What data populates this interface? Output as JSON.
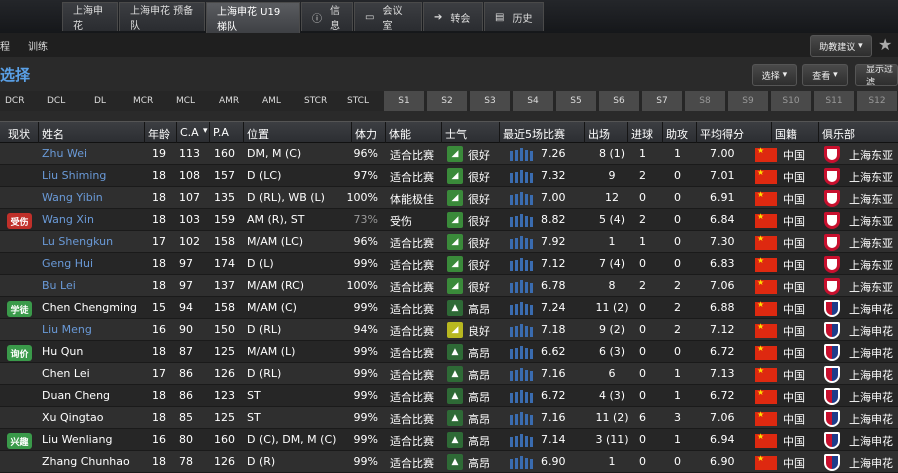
{
  "tabs": [
    {
      "label": "上海申花",
      "icon": "",
      "active": false
    },
    {
      "label": "上海申花 预备队",
      "icon": "",
      "active": false
    },
    {
      "label": "上海申花 U19梯队",
      "icon": "",
      "active": true
    },
    {
      "label": "信息",
      "icon": "info-icon",
      "active": false
    },
    {
      "label": "会议室",
      "icon": "meeting-room-icon",
      "active": false
    },
    {
      "label": "转会",
      "icon": "transfer-icon",
      "active": false
    },
    {
      "label": "历史",
      "icon": "history-icon",
      "active": false
    }
  ],
  "subnav": {
    "left": "程",
    "training": "训练"
  },
  "page_title": "选择",
  "buttons": {
    "assistant": "助教建议",
    "select": "选择",
    "view": "查看",
    "show_filter": "显示过滤"
  },
  "positions": [
    "DCR",
    "DCL",
    "DL",
    "MCR",
    "MCL",
    "AMR",
    "AML",
    "STCR",
    "STCL"
  ],
  "slots": [
    "S1",
    "S2",
    "S3",
    "S4",
    "S5",
    "S6",
    "S7",
    "S8",
    "S9",
    "S10",
    "S11",
    "S12"
  ],
  "columns": {
    "status": "现状",
    "name": "姓名",
    "age": "年龄",
    "ca": "C.A",
    "pa": "P.A",
    "position": "位置",
    "fitness": "体力",
    "condition": "体能",
    "morale": "士气",
    "form": "最近5场比赛",
    "apps": "出场",
    "goals": "进球",
    "assists": "助攻",
    "avg": "平均得分",
    "nation": "国籍",
    "club": "俱乐部"
  },
  "colors": {
    "link": "#6a9ad8",
    "injury": "#c0302a",
    "status_green": "#3a9a4a",
    "morale_green": "#3a8a3a",
    "morale_yellow": "#b8b820"
  },
  "rows": [
    {
      "status": "",
      "name": "Zhu Wei",
      "link": true,
      "age": "19",
      "ca": "113",
      "pa": "160",
      "position": "DM, M (C)",
      "fitness": "96%",
      "condition": "适合比赛",
      "morale": "很好",
      "morale_icon": "flag",
      "form": [
        0.7,
        0.8,
        0.9,
        0.8,
        0.7
      ],
      "rating": "7.26",
      "apps": "8 (1)",
      "goals": "1",
      "assists": "1",
      "avg": "7.00",
      "nation": "中国",
      "club": "上海东亚",
      "club_crest": "dy"
    },
    {
      "status": "",
      "name": "Liu Shiming",
      "link": true,
      "age": "18",
      "ca": "108",
      "pa": "157",
      "position": "D (LC)",
      "fitness": "97%",
      "condition": "适合比赛",
      "morale": "很好",
      "morale_icon": "flag",
      "form": [
        0.7,
        0.8,
        0.9,
        0.8,
        0.7
      ],
      "rating": "7.32",
      "apps": "9",
      "goals": "2",
      "assists": "0",
      "avg": "7.01",
      "nation": "中国",
      "club": "上海东亚",
      "club_crest": "dy"
    },
    {
      "status": "",
      "name": "Wang Yibin",
      "link": true,
      "age": "18",
      "ca": "107",
      "pa": "135",
      "position": "D (RL), WB (L)",
      "fitness": "100%",
      "condition": "体能极佳",
      "morale": "很好",
      "morale_icon": "flag",
      "form": [
        0.7,
        0.8,
        0.9,
        0.8,
        0.7
      ],
      "rating": "7.00",
      "apps": "12",
      "goals": "0",
      "assists": "0",
      "avg": "6.91",
      "nation": "中国",
      "club": "上海东亚",
      "club_crest": "dy"
    },
    {
      "status": "受伤",
      "status_type": "injury",
      "name": "Wang Xin",
      "link": true,
      "age": "18",
      "ca": "103",
      "pa": "159",
      "position": "AM (R), ST",
      "fitness": "73%",
      "fitness_dim": true,
      "condition": "受伤",
      "morale": "很好",
      "morale_icon": "flag",
      "form": [
        0.7,
        0.8,
        0.9,
        0.8,
        0.7
      ],
      "rating": "8.82",
      "apps": "5 (4)",
      "goals": "2",
      "assists": "0",
      "avg": "6.84",
      "nation": "中国",
      "club": "上海东亚",
      "club_crest": "dy"
    },
    {
      "status": "",
      "name": "Lu Shengkun",
      "link": true,
      "age": "17",
      "ca": "102",
      "pa": "158",
      "position": "M/AM (LC)",
      "fitness": "96%",
      "condition": "适合比赛",
      "morale": "很好",
      "morale_icon": "flag",
      "form": [
        0.7,
        0.8,
        0.9,
        0.8,
        0.7
      ],
      "rating": "7.92",
      "apps": "1",
      "goals": "1",
      "assists": "0",
      "avg": "7.30",
      "nation": "中国",
      "club": "上海东亚",
      "club_crest": "dy"
    },
    {
      "status": "",
      "name": "Geng Hui",
      "link": true,
      "age": "18",
      "ca": "97",
      "pa": "174",
      "position": "D (L)",
      "fitness": "99%",
      "condition": "适合比赛",
      "morale": "很好",
      "morale_icon": "flag",
      "form": [
        0.7,
        0.8,
        0.9,
        0.8,
        0.7
      ],
      "rating": "7.12",
      "apps": "7 (4)",
      "goals": "0",
      "assists": "0",
      "avg": "6.83",
      "nation": "中国",
      "club": "上海东亚",
      "club_crest": "dy"
    },
    {
      "status": "",
      "name": "Bu Lei",
      "link": true,
      "age": "18",
      "ca": "97",
      "pa": "137",
      "position": "M/AM (RC)",
      "fitness": "100%",
      "condition": "适合比赛",
      "morale": "很好",
      "morale_icon": "flag",
      "form": [
        0.7,
        0.8,
        0.9,
        0.8,
        0.7
      ],
      "rating": "6.78",
      "apps": "8",
      "goals": "2",
      "assists": "2",
      "avg": "7.06",
      "nation": "中国",
      "club": "上海东亚",
      "club_crest": "dy"
    },
    {
      "status": "学徒",
      "status_type": "green",
      "name": "Chen Chengming",
      "link": false,
      "age": "15",
      "ca": "94",
      "pa": "158",
      "position": "M/AM (C)",
      "fitness": "99%",
      "condition": "适合比赛",
      "morale": "高昂",
      "morale_icon": "arrow",
      "form": [
        0.7,
        0.8,
        0.9,
        0.8,
        0.7
      ],
      "rating": "7.24",
      "apps": "11 (2)",
      "goals": "0",
      "assists": "2",
      "avg": "6.88",
      "nation": "中国",
      "club": "上海申花",
      "club_crest": "sh"
    },
    {
      "status": "",
      "name": "Liu Meng",
      "link": true,
      "age": "16",
      "ca": "90",
      "pa": "150",
      "position": "D (RL)",
      "fitness": "94%",
      "condition": "适合比赛",
      "morale": "良好",
      "morale_icon": "flag-yellow",
      "form": [
        0.7,
        0.8,
        0.9,
        0.8,
        0.7
      ],
      "rating": "7.18",
      "apps": "9 (2)",
      "goals": "0",
      "assists": "2",
      "avg": "7.12",
      "nation": "中国",
      "club": "上海申花",
      "club_crest": "sh"
    },
    {
      "status": "询价",
      "status_type": "green",
      "name": "Hu Qun",
      "link": false,
      "age": "18",
      "ca": "87",
      "pa": "125",
      "position": "M/AM (L)",
      "fitness": "99%",
      "condition": "适合比赛",
      "morale": "高昂",
      "morale_icon": "arrow",
      "form": [
        0.7,
        0.8,
        0.9,
        0.8,
        0.7
      ],
      "rating": "6.62",
      "apps": "6 (3)",
      "goals": "0",
      "assists": "0",
      "avg": "6.72",
      "nation": "中国",
      "club": "上海申花",
      "club_crest": "sh"
    },
    {
      "status": "",
      "name": "Chen Lei",
      "link": false,
      "age": "17",
      "ca": "86",
      "pa": "126",
      "position": "D (RL)",
      "fitness": "99%",
      "condition": "适合比赛",
      "morale": "高昂",
      "morale_icon": "arrow",
      "form": [
        0.7,
        0.8,
        0.9,
        0.8,
        0.7
      ],
      "rating": "7.16",
      "apps": "6",
      "goals": "0",
      "assists": "1",
      "avg": "7.13",
      "nation": "中国",
      "club": "上海申花",
      "club_crest": "sh"
    },
    {
      "status": "",
      "name": "Duan Cheng",
      "link": false,
      "age": "18",
      "ca": "86",
      "pa": "123",
      "position": "ST",
      "fitness": "99%",
      "condition": "适合比赛",
      "morale": "高昂",
      "morale_icon": "arrow",
      "form": [
        0.7,
        0.8,
        0.9,
        0.8,
        0.7
      ],
      "rating": "6.72",
      "apps": "4 (3)",
      "goals": "0",
      "assists": "1",
      "avg": "6.72",
      "nation": "中国",
      "club": "上海申花",
      "club_crest": "sh"
    },
    {
      "status": "",
      "name": "Xu Qingtao",
      "link": false,
      "age": "18",
      "ca": "85",
      "pa": "125",
      "position": "ST",
      "fitness": "99%",
      "condition": "适合比赛",
      "morale": "高昂",
      "morale_icon": "arrow",
      "form": [
        0.7,
        0.8,
        0.9,
        0.8,
        0.7
      ],
      "rating": "7.16",
      "apps": "11 (2)",
      "goals": "6",
      "assists": "3",
      "avg": "7.06",
      "nation": "中国",
      "club": "上海申花",
      "club_crest": "sh"
    },
    {
      "status": "兴趣",
      "status_type": "green",
      "name": "Liu Wenliang",
      "link": false,
      "age": "16",
      "ca": "80",
      "pa": "160",
      "position": "D (C), DM, M (C)",
      "fitness": "99%",
      "condition": "适合比赛",
      "morale": "高昂",
      "morale_icon": "arrow",
      "form": [
        0.7,
        0.8,
        0.9,
        0.8,
        0.7
      ],
      "rating": "7.14",
      "apps": "3 (11)",
      "goals": "0",
      "assists": "1",
      "avg": "6.94",
      "nation": "中国",
      "club": "上海申花",
      "club_crest": "sh"
    },
    {
      "status": "",
      "name": "Zhang Chunhao",
      "link": false,
      "age": "18",
      "ca": "78",
      "pa": "126",
      "position": "D (R)",
      "fitness": "99%",
      "condition": "适合比赛",
      "morale": "高昂",
      "morale_icon": "arrow",
      "form": [
        0.7,
        0.8,
        0.9,
        0.8,
        0.7
      ],
      "rating": "6.90",
      "apps": "1",
      "goals": "0",
      "assists": "0",
      "avg": "6.90",
      "nation": "中国",
      "club": "上海申花",
      "club_crest": "sh"
    }
  ]
}
